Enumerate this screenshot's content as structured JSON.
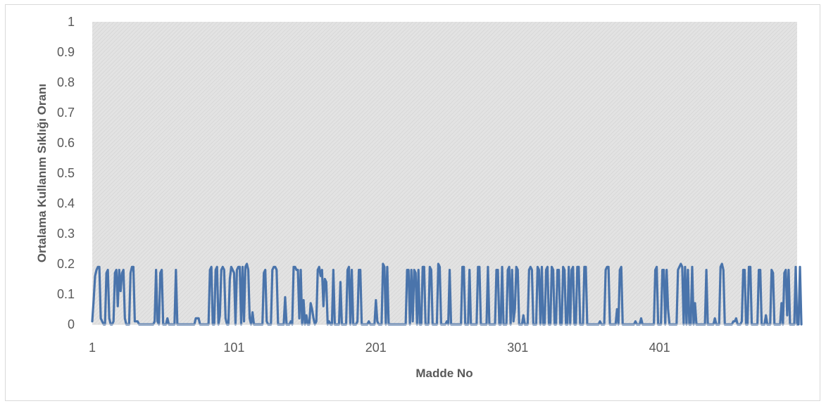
{
  "chart_data": {
    "type": "line",
    "xlabel": "Madde No",
    "ylabel": "Ortalama Kullanım Sıklığı Oranı",
    "x_tick_labels": [
      "1",
      "101",
      "201",
      "301",
      "401"
    ],
    "y_tick_labels": [
      "0",
      "0.1",
      "0.2",
      "0.3",
      "0.4",
      "0.5",
      "0.6",
      "0.7",
      "0.8",
      "0.9",
      "1"
    ],
    "ylim": [
      0,
      1
    ],
    "x_range": [
      1,
      498
    ],
    "series_color": "#4a74ab",
    "plot_background": "#e8e8e8",
    "series": [
      {
        "x_start": 1,
        "values": [
          0.01,
          0.08,
          0.16,
          0.18,
          0.19,
          0.19,
          0.02,
          0.01,
          0.0,
          0.0,
          0.17,
          0.18,
          0.02,
          0.0,
          0.0,
          0.01,
          0.17,
          0.18,
          0.06,
          0.18,
          0.11,
          0.17,
          0.18,
          0.02,
          0.0,
          0.0,
          0.0,
          0.17,
          0.19,
          0.19,
          0.01,
          0.01,
          0.01,
          0.0,
          0.0,
          0.0,
          0.0,
          0.0,
          0.0,
          0.0,
          0.0,
          0.0,
          0.0,
          0.0,
          0.01,
          0.18,
          0.01,
          0.0,
          0.17,
          0.18,
          0.0,
          0.0,
          0.0,
          0.02,
          0.0,
          0.0,
          0.0,
          0.0,
          0.0,
          0.18,
          0.0,
          0.0,
          0.0,
          0.0,
          0.0,
          0.0,
          0.0,
          0.0,
          0.0,
          0.0,
          0.0,
          0.0,
          0.0,
          0.02,
          0.02,
          0.02,
          0.0,
          0.0,
          0.0,
          0.0,
          0.0,
          0.0,
          0.0,
          0.18,
          0.19,
          0.0,
          0.0,
          0.18,
          0.19,
          0.0,
          0.03,
          0.18,
          0.19,
          0.18,
          0.02,
          0.0,
          0.0,
          0.15,
          0.19,
          0.18,
          0.17,
          0.0,
          0.18,
          0.19,
          0.19,
          0.0,
          0.19,
          0.01,
          0.19,
          0.2,
          0.18,
          0.02,
          0.0,
          0.04,
          0.0,
          0.0,
          0.0,
          0.0,
          0.0,
          0.0,
          0.0,
          0.17,
          0.18,
          0.01,
          0.0,
          0.0,
          0.0,
          0.18,
          0.19,
          0.19,
          0.18,
          0.0,
          0.0,
          0.0,
          0.0,
          0.0,
          0.09,
          0.0,
          0.0,
          0.0,
          0.01,
          0.0,
          0.19,
          0.19,
          0.18,
          0.18,
          0.02,
          0.18,
          0.0,
          0.08,
          0.0,
          0.03,
          0.0,
          0.0,
          0.07,
          0.05,
          0.02,
          0.0,
          0.01,
          0.18,
          0.19,
          0.16,
          0.18,
          0.06,
          0.15,
          0.14,
          0.0,
          0.01,
          0.0,
          0.0,
          0.18,
          0.0,
          0.0,
          0.0,
          0.0,
          0.14,
          0.0,
          0.0,
          0.0,
          0.0,
          0.18,
          0.19,
          0.0,
          0.18,
          0.0,
          0.0,
          0.0,
          0.01,
          0.18,
          0.18,
          0.0,
          0.0,
          0.0,
          0.0,
          0.0,
          0.01,
          0.0,
          0.0,
          0.0,
          0.0,
          0.08,
          0.01,
          0.0,
          0.0,
          0.0,
          0.2,
          0.19,
          0.0,
          0.19,
          0.0,
          0.0,
          0.0,
          0.0,
          0.0,
          0.0,
          0.0,
          0.0,
          0.0,
          0.0,
          0.0,
          0.0,
          0.0,
          0.18,
          0.18,
          0.0,
          0.18,
          0.01,
          0.18,
          0.17,
          0.0,
          0.18,
          0.0,
          0.0,
          0.19,
          0.19,
          0.0,
          0.0,
          0.0,
          0.19,
          0.18,
          0.0,
          0.0,
          0.0,
          0.0,
          0.2,
          0.19,
          0.0,
          0.0,
          0.0,
          0.0,
          0.01,
          0.0,
          0.18,
          0.0,
          0.0,
          0.0,
          0.0,
          0.0,
          0.0,
          0.0,
          0.0,
          0.19,
          0.19,
          0.0,
          0.0,
          0.0,
          0.18,
          0.0,
          0.0,
          0.0,
          0.0,
          0.0,
          0.19,
          0.19,
          0.0,
          0.0,
          0.0,
          0.0,
          0.0,
          0.19,
          0.0,
          0.0,
          0.0,
          0.0,
          0.0,
          0.18,
          0.18,
          0.0,
          0.0,
          0.19,
          0.0,
          0.0,
          0.0,
          0.18,
          0.19,
          0.0,
          0.18,
          0.01,
          0.05,
          0.19,
          0.18,
          0.0,
          0.0,
          0.0,
          0.03,
          0.0,
          0.0,
          0.0,
          0.18,
          0.19,
          0.18,
          0.0,
          0.0,
          0.0,
          0.19,
          0.18,
          0.0,
          0.19,
          0.0,
          0.0,
          0.18,
          0.19,
          0.0,
          0.0,
          0.19,
          0.18,
          0.0,
          0.0,
          0.18,
          0.18,
          0.0,
          0.0,
          0.19,
          0.18,
          0.0,
          0.0,
          0.19,
          0.0,
          0.18,
          0.19,
          0.0,
          0.0,
          0.19,
          0.19,
          0.0,
          0.0,
          0.0,
          0.19,
          0.19,
          0.0,
          0.0,
          0.0,
          0.0,
          0.0,
          0.0,
          0.0,
          0.0,
          0.0,
          0.01,
          0.0,
          0.0,
          0.0,
          0.18,
          0.19,
          0.19,
          0.0,
          0.0,
          0.0,
          0.0,
          0.0,
          0.05,
          0.0,
          0.18,
          0.19,
          0.0,
          0.0,
          0.0,
          0.0,
          0.0,
          0.0,
          0.0,
          0.0,
          0.0,
          0.01,
          0.0,
          0.0,
          0.0,
          0.02,
          0.0,
          0.0,
          0.0,
          0.0,
          0.0,
          0.0,
          0.0,
          0.0,
          0.0,
          0.18,
          0.19,
          0.0,
          0.0,
          0.0,
          0.18,
          0.18,
          0.0,
          0.18,
          0.05,
          0.0,
          0.0,
          0.0,
          0.0,
          0.0,
          0.0,
          0.18,
          0.19,
          0.2,
          0.19,
          0.0,
          0.19,
          0.0,
          0.18,
          0.0,
          0.0,
          0.19,
          0.0,
          0.07,
          0.0,
          0.0,
          0.0,
          0.0,
          0.0,
          0.0,
          0.0,
          0.18,
          0.0,
          0.0,
          0.0,
          0.0,
          0.0,
          0.02,
          0.0,
          0.0,
          0.0,
          0.19,
          0.2,
          0.18,
          0.0,
          0.0,
          0.0,
          0.0,
          0.0,
          0.0,
          0.01,
          0.01,
          0.02,
          0.0,
          0.0,
          0.0,
          0.01,
          0.18,
          0.18,
          0.0,
          0.0,
          0.19,
          0.19,
          0.0,
          0.0,
          0.0,
          0.0,
          0.0,
          0.18,
          0.18,
          0.0,
          0.0,
          0.0,
          0.03,
          0.0,
          0.0,
          0.0,
          0.18,
          0.17,
          0.0,
          0.0,
          0.0,
          0.0,
          0.0,
          0.07,
          0.0,
          0.17,
          0.18,
          0.03,
          0.18,
          0.0,
          0.0,
          0.0,
          0.0,
          0.19,
          0.0,
          0.0,
          0.19,
          0.0
        ]
      }
    ]
  }
}
